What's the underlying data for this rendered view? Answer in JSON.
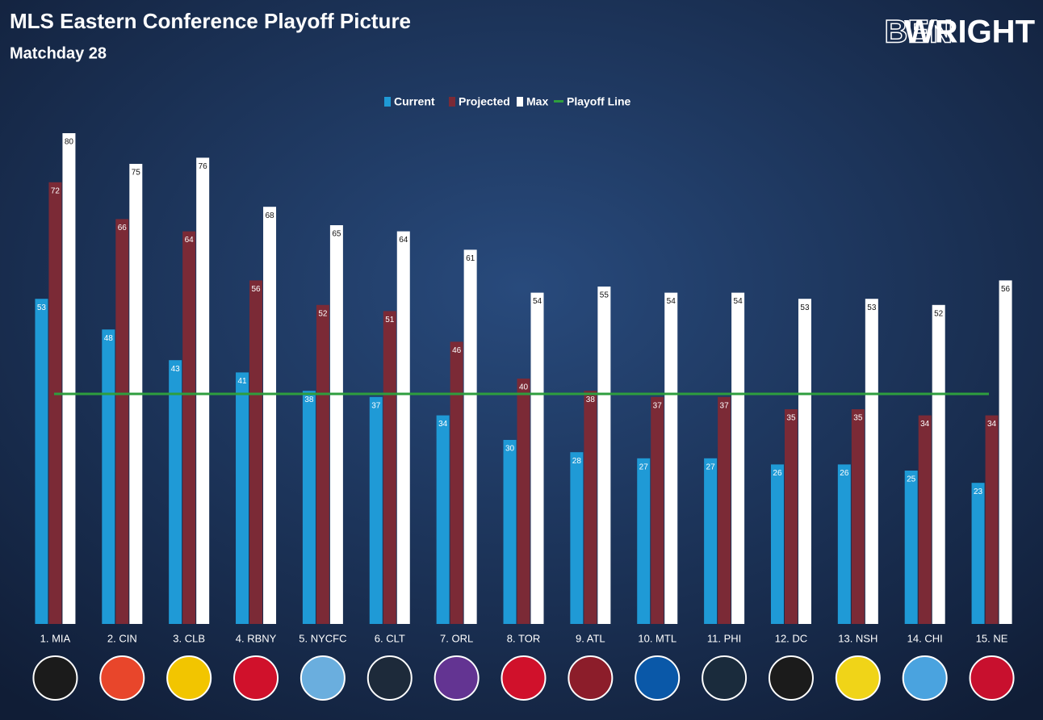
{
  "brand": {
    "first": "BEN",
    "second": "WRIGHT"
  },
  "chart_data": {
    "type": "bar",
    "title": "MLS Eastern Conference Playoff Picture",
    "subtitle": "Matchday 28",
    "categories": [
      "1. MIA",
      "2. CIN",
      "3. CLB",
      "4. RBNY",
      "5. NYCFC",
      "6. CLT",
      "7. ORL",
      "8. TOR",
      "9. ATL",
      "10. MTL",
      "11. PHI",
      "12. DC",
      "13. NSH",
      "14. CHI",
      "15. NE"
    ],
    "series": [
      {
        "name": "Current",
        "color": "#1f9ad6",
        "values": [
          53,
          48,
          43,
          41,
          38,
          37,
          34,
          30,
          28,
          27,
          27,
          26,
          26,
          25,
          23
        ]
      },
      {
        "name": "Projected",
        "color": "#7b2a36",
        "values": [
          72,
          66,
          64,
          56,
          52,
          51,
          46,
          40,
          38,
          37,
          37,
          35,
          35,
          34,
          34
        ]
      },
      {
        "name": "Max",
        "color": "#ffffff",
        "values": [
          80,
          75,
          76,
          68,
          65,
          64,
          61,
          54,
          55,
          54,
          54,
          53,
          53,
          52,
          56
        ]
      }
    ],
    "playoff_line": {
      "name": "Playoff Line",
      "color": "#2e9e3e",
      "value": 37.5
    },
    "ylim": [
      0,
      80
    ],
    "legend": "top"
  }
}
